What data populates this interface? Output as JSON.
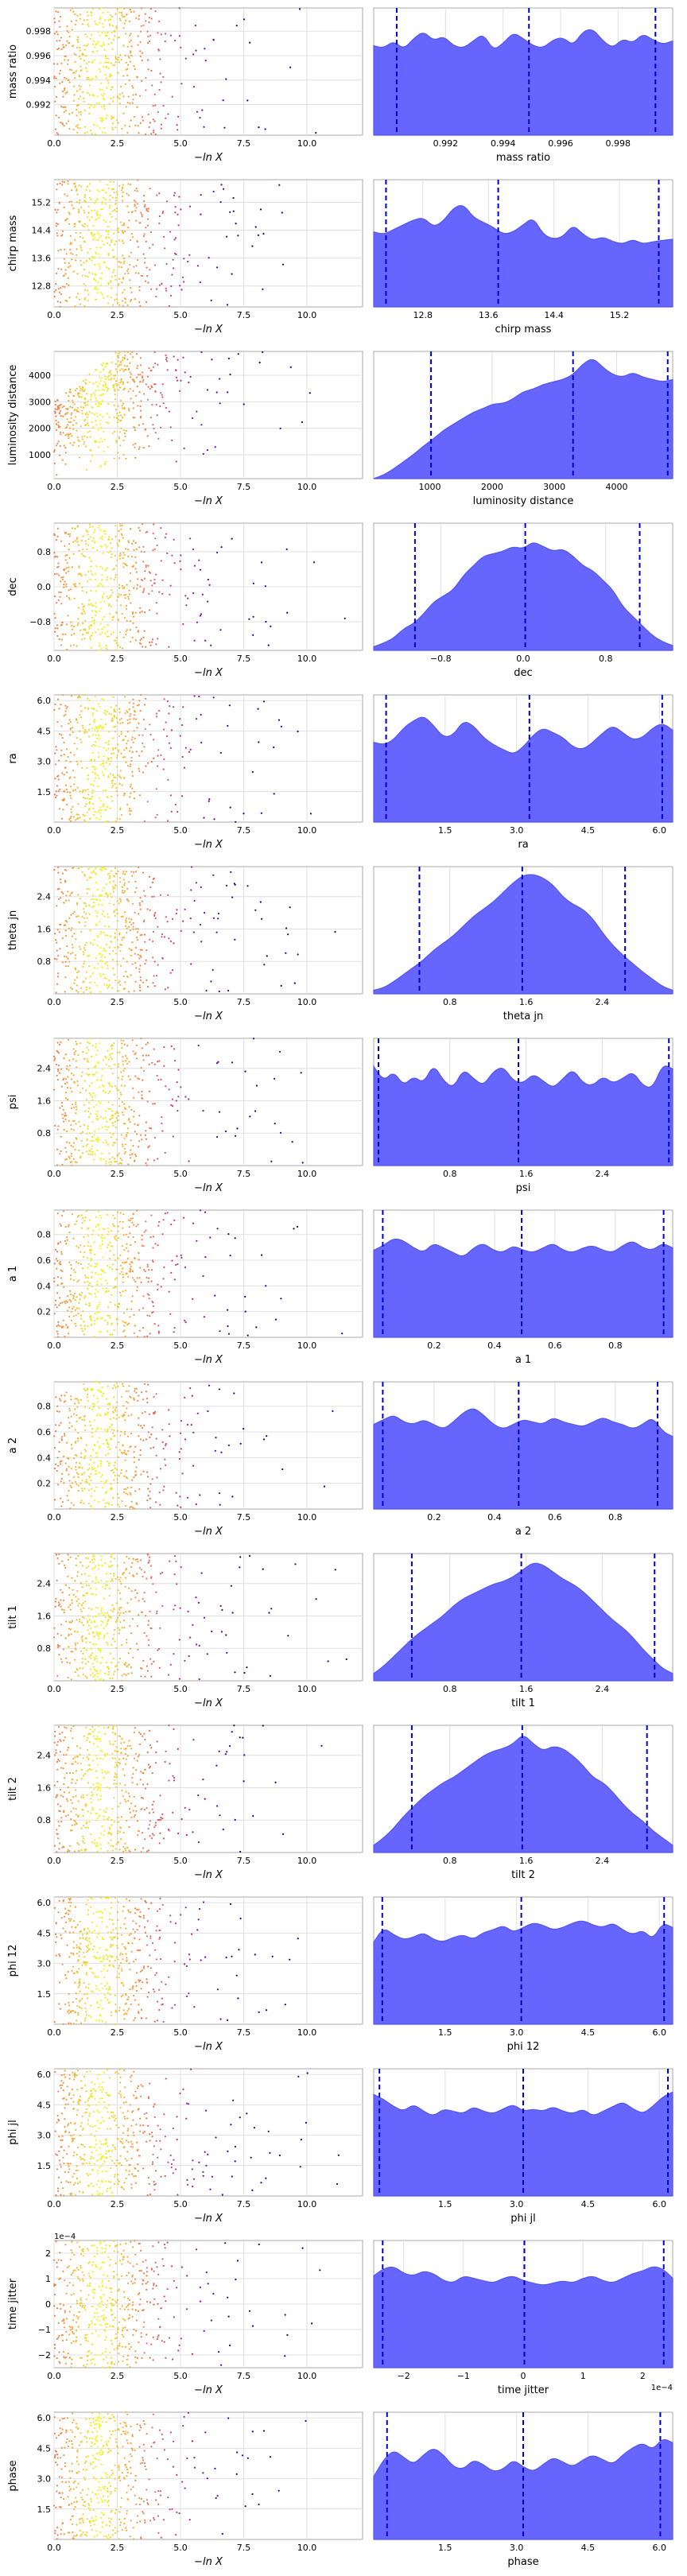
{
  "x_axis_label": "−ln X",
  "left_xticks": [
    "0.0",
    "2.5",
    "5.0",
    "7.5",
    "10.0"
  ],
  "chart_data": [
    {
      "type": "scatter+kde",
      "param": "mass ratio",
      "ylabel": "mass ratio",
      "xlabel": "mass ratio",
      "range": [
        0.9895,
        0.9999
      ],
      "ticks": [
        0.992,
        0.994,
        0.996,
        0.998
      ],
      "tick_labels": [
        "0.992",
        "0.994",
        "0.996",
        "0.998"
      ],
      "quantiles": [
        0.9903,
        0.9949,
        0.9993
      ],
      "kde": [
        0.74,
        0.72,
        0.78,
        0.71,
        0.8,
        0.86,
        0.78,
        0.82,
        0.74,
        0.72,
        0.78,
        0.84,
        0.7,
        0.76,
        0.85,
        0.8,
        0.74,
        0.72,
        0.79,
        0.81,
        0.74,
        0.86,
        0.88,
        0.78,
        0.72,
        0.8,
        0.76,
        0.84,
        0.79,
        0.75,
        0.78
      ],
      "scatter_trend": "flat",
      "offset_label": ""
    },
    {
      "type": "scatter+kde",
      "param": "chirp mass",
      "ylabel": "chirp mass",
      "xlabel": "chirp mass",
      "range": [
        12.2,
        15.85
      ],
      "ticks": [
        12.8,
        13.6,
        14.4,
        15.2
      ],
      "tick_labels": [
        "12.8",
        "13.6",
        "14.4",
        "15.2"
      ],
      "quantiles": [
        12.35,
        13.72,
        15.68
      ],
      "kde": [
        0.62,
        0.6,
        0.64,
        0.68,
        0.72,
        0.74,
        0.66,
        0.71,
        0.82,
        0.85,
        0.74,
        0.7,
        0.66,
        0.6,
        0.62,
        0.68,
        0.74,
        0.6,
        0.56,
        0.58,
        0.68,
        0.6,
        0.55,
        0.58,
        0.54,
        0.52,
        0.56,
        0.52,
        0.54,
        0.55,
        0.56
      ],
      "scatter_trend": "flat",
      "offset_label": ""
    },
    {
      "type": "scatter+kde",
      "param": "luminosity distance",
      "ylabel": "luminosity distance",
      "xlabel": "luminosity distance",
      "range": [
        100,
        4900
      ],
      "ticks": [
        1000,
        2000,
        3000,
        4000
      ],
      "tick_labels": [
        "1000",
        "2000",
        "3000",
        "4000"
      ],
      "quantiles": [
        1020,
        3300,
        4820
      ],
      "kde": [
        0.0,
        0.03,
        0.08,
        0.14,
        0.2,
        0.27,
        0.33,
        0.4,
        0.45,
        0.5,
        0.55,
        0.58,
        0.62,
        0.62,
        0.66,
        0.72,
        0.74,
        0.78,
        0.8,
        0.82,
        0.86,
        0.95,
        1.0,
        0.92,
        0.86,
        0.84,
        0.88,
        0.84,
        0.82,
        0.8,
        0.82
      ],
      "scatter_trend": "rising",
      "offset_label": ""
    },
    {
      "type": "scatter+kde",
      "param": "dec",
      "ylabel": "dec",
      "xlabel": "dec",
      "range": [
        -1.45,
        1.45
      ],
      "ticks": [
        -0.8,
        0.0,
        0.8
      ],
      "tick_labels": [
        "−0.8",
        "0.0",
        "0.8"
      ],
      "quantiles": [
        -1.05,
        0.02,
        1.13
      ],
      "kde": [
        0.03,
        0.06,
        0.1,
        0.18,
        0.22,
        0.3,
        0.4,
        0.45,
        0.5,
        0.62,
        0.7,
        0.78,
        0.8,
        0.82,
        0.86,
        0.84,
        0.9,
        0.86,
        0.82,
        0.84,
        0.78,
        0.7,
        0.66,
        0.58,
        0.5,
        0.36,
        0.28,
        0.2,
        0.12,
        0.07,
        0.04
      ],
      "scatter_trend": "flat",
      "offset_label": ""
    },
    {
      "type": "scatter+kde",
      "param": "ra",
      "ylabel": "ra",
      "xlabel": "ra",
      "range": [
        0.0,
        6.28
      ],
      "ticks": [
        1.5,
        3.0,
        4.5,
        6.0
      ],
      "tick_labels": [
        "1.5",
        "3.0",
        "4.5",
        "6.0"
      ],
      "quantiles": [
        0.26,
        3.27,
        6.06
      ],
      "kde": [
        0.66,
        0.64,
        0.68,
        0.78,
        0.84,
        0.88,
        0.8,
        0.7,
        0.72,
        0.84,
        0.8,
        0.7,
        0.64,
        0.6,
        0.56,
        0.62,
        0.72,
        0.78,
        0.74,
        0.7,
        0.62,
        0.6,
        0.66,
        0.74,
        0.8,
        0.74,
        0.68,
        0.7,
        0.78,
        0.82,
        0.76
      ],
      "scatter_trend": "flat",
      "offset_label": ""
    },
    {
      "type": "scatter+kde",
      "param": "theta jn",
      "ylabel": "theta jn",
      "xlabel": "theta jn",
      "range": [
        0.0,
        3.14
      ],
      "ticks": [
        0.8,
        1.6,
        2.4
      ],
      "tick_labels": [
        "0.8",
        "1.6",
        "2.4"
      ],
      "quantiles": [
        0.48,
        1.56,
        2.64
      ],
      "kde": [
        0.03,
        0.05,
        0.1,
        0.16,
        0.22,
        0.28,
        0.36,
        0.42,
        0.48,
        0.56,
        0.64,
        0.7,
        0.76,
        0.84,
        0.92,
        0.98,
        0.99,
        0.96,
        0.9,
        0.8,
        0.74,
        0.7,
        0.62,
        0.5,
        0.4,
        0.32,
        0.25,
        0.18,
        0.12,
        0.06,
        0.03
      ],
      "scatter_trend": "flat",
      "offset_label": ""
    },
    {
      "type": "scatter+kde",
      "param": "psi",
      "ylabel": "psi",
      "xlabel": "psi",
      "range": [
        0.0,
        3.14
      ],
      "ticks": [
        0.8,
        1.6,
        2.4
      ],
      "tick_labels": [
        "0.8",
        "1.6",
        "2.4"
      ],
      "quantiles": [
        0.05,
        1.52,
        3.1
      ],
      "kde": [
        0.82,
        0.7,
        0.78,
        0.66,
        0.74,
        0.68,
        0.84,
        0.7,
        0.64,
        0.8,
        0.72,
        0.66,
        0.78,
        0.82,
        0.7,
        0.68,
        0.76,
        0.7,
        0.64,
        0.72,
        0.8,
        0.68,
        0.66,
        0.74,
        0.68,
        0.72,
        0.78,
        0.66,
        0.64,
        0.84,
        0.8
      ],
      "scatter_trend": "flat",
      "offset_label": ""
    },
    {
      "type": "scatter+kde",
      "param": "a 1",
      "ylabel": "a 1",
      "xlabel": "a 1",
      "range": [
        0.0,
        0.99
      ],
      "ticks": [
        0.2,
        0.4,
        0.6,
        0.8
      ],
      "tick_labels": [
        "0.2",
        "0.4",
        "0.6",
        "0.8"
      ],
      "quantiles": [
        0.03,
        0.49,
        0.96
      ],
      "kde": [
        0.72,
        0.76,
        0.82,
        0.8,
        0.74,
        0.7,
        0.78,
        0.74,
        0.7,
        0.66,
        0.74,
        0.78,
        0.72,
        0.7,
        0.76,
        0.72,
        0.7,
        0.74,
        0.78,
        0.72,
        0.7,
        0.74,
        0.76,
        0.72,
        0.7,
        0.76,
        0.8,
        0.74,
        0.72,
        0.78,
        0.74
      ],
      "scatter_trend": "flat",
      "offset_label": ""
    },
    {
      "type": "scatter+kde",
      "param": "a 2",
      "ylabel": "a 2",
      "xlabel": "a 2",
      "range": [
        0.0,
        0.99
      ],
      "ticks": [
        0.2,
        0.4,
        0.6,
        0.8
      ],
      "tick_labels": [
        "0.2",
        "0.4",
        "0.6",
        "0.8"
      ],
      "quantiles": [
        0.03,
        0.48,
        0.94
      ],
      "kde": [
        0.7,
        0.74,
        0.78,
        0.72,
        0.7,
        0.74,
        0.7,
        0.66,
        0.72,
        0.8,
        0.84,
        0.78,
        0.7,
        0.66,
        0.7,
        0.74,
        0.72,
        0.7,
        0.76,
        0.72,
        0.7,
        0.68,
        0.72,
        0.76,
        0.72,
        0.7,
        0.66,
        0.7,
        0.76,
        0.64,
        0.6
      ],
      "scatter_trend": "flat",
      "offset_label": ""
    },
    {
      "type": "scatter+kde",
      "param": "tilt 1",
      "ylabel": "tilt 1",
      "xlabel": "tilt 1",
      "range": [
        0.0,
        3.14
      ],
      "ticks": [
        0.8,
        1.6,
        2.4
      ],
      "tick_labels": [
        "0.8",
        "1.6",
        "2.4"
      ],
      "quantiles": [
        0.4,
        1.55,
        2.95
      ],
      "kde": [
        0.06,
        0.12,
        0.2,
        0.28,
        0.36,
        0.42,
        0.48,
        0.54,
        0.62,
        0.68,
        0.72,
        0.76,
        0.8,
        0.82,
        0.86,
        0.92,
        0.98,
        0.96,
        0.9,
        0.84,
        0.8,
        0.74,
        0.66,
        0.58,
        0.5,
        0.44,
        0.36,
        0.26,
        0.18,
        0.1,
        0.06
      ],
      "scatter_trend": "flat",
      "offset_label": ""
    },
    {
      "type": "scatter+kde",
      "param": "tilt 2",
      "ylabel": "tilt 2",
      "xlabel": "tilt 2",
      "range": [
        0.0,
        3.14
      ],
      "ticks": [
        0.8,
        1.6,
        2.4
      ],
      "tick_labels": [
        "0.8",
        "1.6",
        "2.4"
      ],
      "quantiles": [
        0.4,
        1.56,
        2.87
      ],
      "kde": [
        0.06,
        0.12,
        0.2,
        0.3,
        0.38,
        0.46,
        0.52,
        0.58,
        0.62,
        0.68,
        0.74,
        0.8,
        0.84,
        0.86,
        0.9,
        0.98,
        0.9,
        0.84,
        0.88,
        0.86,
        0.8,
        0.72,
        0.62,
        0.58,
        0.5,
        0.4,
        0.32,
        0.26,
        0.18,
        0.12,
        0.06
      ],
      "scatter_trend": "flat",
      "offset_label": ""
    },
    {
      "type": "scatter+kde",
      "param": "phi 12",
      "ylabel": "phi 12",
      "xlabel": "phi 12",
      "range": [
        0.0,
        6.28
      ],
      "ticks": [
        1.5,
        3.0,
        4.5,
        6.0
      ],
      "tick_labels": [
        "1.5",
        "3.0",
        "4.5",
        "6.0"
      ],
      "quantiles": [
        0.18,
        3.1,
        6.1
      ],
      "kde": [
        0.68,
        0.8,
        0.74,
        0.7,
        0.72,
        0.76,
        0.7,
        0.68,
        0.72,
        0.74,
        0.7,
        0.76,
        0.78,
        0.82,
        0.76,
        0.8,
        0.84,
        0.82,
        0.78,
        0.8,
        0.84,
        0.86,
        0.82,
        0.8,
        0.84,
        0.78,
        0.74,
        0.78,
        0.7,
        0.84,
        0.8
      ],
      "scatter_trend": "flat",
      "offset_label": ""
    },
    {
      "type": "scatter+kde",
      "param": "phi jl",
      "ylabel": "phi jl",
      "xlabel": "phi jl",
      "range": [
        0.0,
        6.28
      ],
      "ticks": [
        1.5,
        3.0,
        4.5,
        6.0
      ],
      "tick_labels": [
        "1.5",
        "3.0",
        "4.5",
        "6.0"
      ],
      "quantiles": [
        0.12,
        3.14,
        6.18
      ],
      "kde": [
        0.84,
        0.8,
        0.74,
        0.7,
        0.76,
        0.7,
        0.66,
        0.72,
        0.7,
        0.68,
        0.74,
        0.7,
        0.68,
        0.72,
        0.76,
        0.7,
        0.72,
        0.7,
        0.74,
        0.7,
        0.68,
        0.72,
        0.66,
        0.7,
        0.74,
        0.78,
        0.72,
        0.68,
        0.74,
        0.82,
        0.86
      ],
      "scatter_trend": "flat",
      "offset_label": ""
    },
    {
      "type": "scatter+kde",
      "param": "time jitter",
      "ylabel": "time jitter",
      "xlabel": "time jitter",
      "range": [
        -2.5,
        2.5
      ],
      "ticks": [
        -2,
        -1,
        0,
        1,
        2
      ],
      "tick_labels": [
        "−2",
        "−1",
        "0",
        "1",
        "2"
      ],
      "quantiles": [
        -2.35,
        0.02,
        2.35
      ],
      "kde": [
        0.76,
        0.82,
        0.84,
        0.78,
        0.76,
        0.8,
        0.78,
        0.72,
        0.7,
        0.76,
        0.74,
        0.72,
        0.7,
        0.74,
        0.76,
        0.72,
        0.7,
        0.68,
        0.7,
        0.72,
        0.7,
        0.74,
        0.76,
        0.72,
        0.7,
        0.74,
        0.78,
        0.8,
        0.84,
        0.82,
        0.74
      ],
      "scatter_trend": "flat",
      "offset_label": "1e−4"
    },
    {
      "type": "scatter+kde",
      "param": "phase",
      "ylabel": "phase",
      "xlabel": "phase",
      "range": [
        0.0,
        6.28
      ],
      "ticks": [
        1.5,
        3.0,
        4.5,
        6.0
      ],
      "tick_labels": [
        "1.5",
        "3.0",
        "4.5",
        "6.0"
      ],
      "quantiles": [
        0.28,
        3.14,
        6.02
      ],
      "kde": [
        0.52,
        0.66,
        0.74,
        0.68,
        0.62,
        0.7,
        0.76,
        0.7,
        0.6,
        0.58,
        0.66,
        0.62,
        0.56,
        0.58,
        0.66,
        0.6,
        0.56,
        0.62,
        0.68,
        0.64,
        0.6,
        0.66,
        0.7,
        0.66,
        0.62,
        0.7,
        0.76,
        0.8,
        0.74,
        0.84,
        0.8
      ],
      "scatter_trend": "flat",
      "offset_label": ""
    }
  ],
  "colors": {
    "kde_fill": "#6666ff",
    "kde_line": "#5555ee",
    "quantile": "#0000cc",
    "grid": "#e0e0e0",
    "frame": "#aaaaaa"
  },
  "left_yticks": [
    [
      "0.992",
      "0.994",
      "0.996",
      "0.998"
    ],
    [
      "12.8",
      "13.6",
      "14.4",
      "15.2"
    ],
    [
      "1000",
      "2000",
      "3000",
      "4000"
    ],
    [
      "−0.8",
      "0.0",
      "0.8"
    ],
    [
      "1.5",
      "3.0",
      "4.5",
      "6.0"
    ],
    [
      "0.8",
      "1.6",
      "2.4"
    ],
    [
      "0.8",
      "1.6",
      "2.4"
    ],
    [
      "0.2",
      "0.4",
      "0.6",
      "0.8"
    ],
    [
      "0.2",
      "0.4",
      "0.6",
      "0.8"
    ],
    [
      "0.8",
      "1.6",
      "2.4"
    ],
    [
      "0.8",
      "1.6",
      "2.4"
    ],
    [
      "1.5",
      "3.0",
      "4.5",
      "6.0"
    ],
    [
      "1.5",
      "3.0",
      "4.5",
      "6.0"
    ],
    [
      "−2",
      "−1",
      "0",
      "1",
      "2"
    ],
    [
      "1.5",
      "3.0",
      "4.5",
      "6.0"
    ]
  ]
}
